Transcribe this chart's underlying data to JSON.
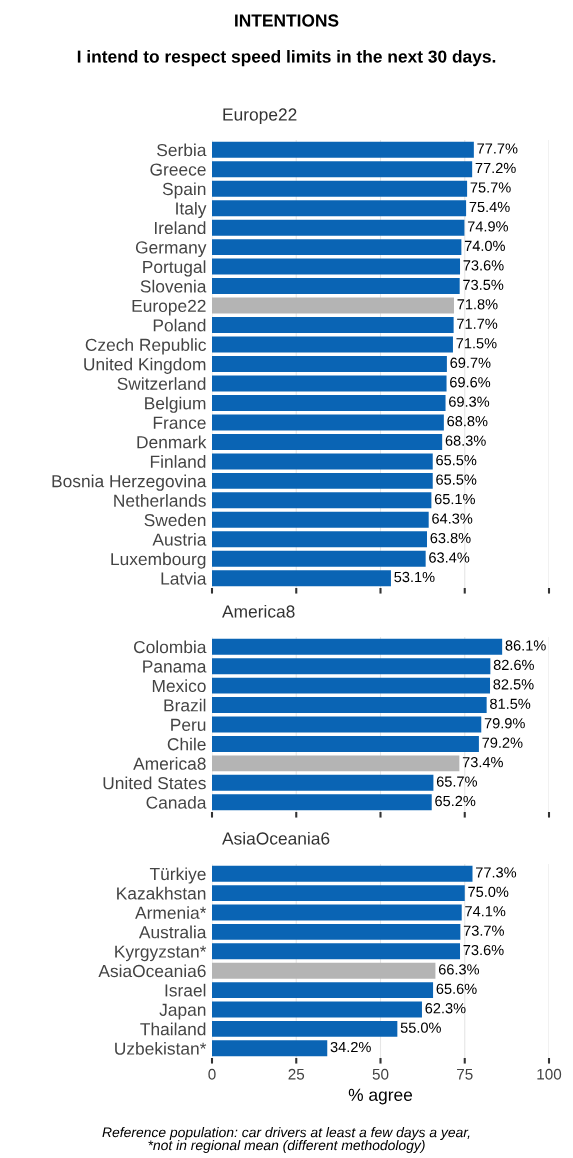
{
  "chart_data": [
    {
      "type": "bar",
      "orientation": "horizontal",
      "title": "INTENTIONS",
      "subtitle": "I intend to respect speed limits in the next 30 days.",
      "annotations": [
        "Europe22"
      ],
      "categories": [
        "Serbia",
        "Greece",
        "Spain",
        "Italy",
        "Ireland",
        "Germany",
        "Portugal",
        "Slovenia",
        "Europe22",
        "Poland",
        "Czech Republic",
        "United Kingdom",
        "Switzerland",
        "Belgium",
        "France",
        "Denmark",
        "Finland",
        "Bosnia Herzegovina",
        "Netherlands",
        "Sweden",
        "Austria",
        "Luxembourg",
        "Latvia"
      ],
      "values": [
        77.7,
        77.2,
        75.7,
        75.4,
        74.9,
        74.0,
        73.6,
        73.5,
        71.8,
        71.7,
        71.5,
        69.7,
        69.6,
        69.3,
        68.8,
        68.3,
        65.5,
        65.5,
        65.1,
        64.3,
        63.8,
        63.4,
        53.1
      ],
      "value_labels": [
        "77.7%",
        "77.2%",
        "75.7%",
        "75.4%",
        "74.9%",
        "74.0%",
        "73.6%",
        "73.5%",
        "71.8%",
        "71.7%",
        "71.5%",
        "69.7%",
        "69.6%",
        "69.3%",
        "68.8%",
        "68.3%",
        "65.5%",
        "65.5%",
        "65.1%",
        "64.3%",
        "63.8%",
        "63.4%",
        "53.1%"
      ],
      "colors": [
        "#0a64b4",
        "#0a64b4",
        "#0a64b4",
        "#0a64b4",
        "#0a64b4",
        "#0a64b4",
        "#0a64b4",
        "#0a64b4",
        "#b4b4b4",
        "#0a64b4",
        "#0a64b4",
        "#0a64b4",
        "#0a64b4",
        "#0a64b4",
        "#0a64b4",
        "#0a64b4",
        "#0a64b4",
        "#0a64b4",
        "#0a64b4",
        "#0a64b4",
        "#0a64b4",
        "#0a64b4",
        "#0a64b4"
      ],
      "xlim": [
        0,
        100
      ],
      "xticks": [
        0,
        25,
        50,
        75,
        100
      ],
      "grid": "x",
      "tick_labels": "y"
    },
    {
      "type": "bar",
      "orientation": "horizontal",
      "annotations": [
        "America8"
      ],
      "categories": [
        "Colombia",
        "Panama",
        "Mexico",
        "Brazil",
        "Peru",
        "Chile",
        "America8",
        "United States",
        "Canada"
      ],
      "values": [
        86.1,
        82.6,
        82.5,
        81.5,
        79.9,
        79.2,
        73.4,
        65.7,
        65.2
      ],
      "value_labels": [
        "86.1%",
        "82.6%",
        "82.5%",
        "81.5%",
        "79.9%",
        "79.2%",
        "73.4%",
        "65.7%",
        "65.2%"
      ],
      "colors": [
        "#0a64b4",
        "#0a64b4",
        "#0a64b4",
        "#0a64b4",
        "#0a64b4",
        "#0a64b4",
        "#b4b4b4",
        "#0a64b4",
        "#0a64b4"
      ],
      "xlim": [
        0,
        100
      ],
      "xticks": [
        0,
        25,
        50,
        75,
        100
      ],
      "grid": "x",
      "tick_labels": "y"
    },
    {
      "type": "bar",
      "orientation": "horizontal",
      "annotations": [
        "AsiaOceania6",
        "Reference population: car drivers at least a few days a year,\n*not in regional mean (different methodology)"
      ],
      "xlabel": "% agree",
      "categories": [
        "Türkiye",
        "Kazakhstan",
        "Armenia*",
        "Australia",
        "Kyrgyzstan*",
        "AsiaOceania6",
        "Israel",
        "Japan",
        "Thailand",
        "Uzbekistan*"
      ],
      "values": [
        77.3,
        75.0,
        74.1,
        73.7,
        73.6,
        66.3,
        65.6,
        62.3,
        55.0,
        34.2
      ],
      "value_labels": [
        "77.3%",
        "75.0%",
        "74.1%",
        "73.7%",
        "73.6%",
        "66.3%",
        "65.6%",
        "62.3%",
        "55.0%",
        "34.2%"
      ],
      "colors": [
        "#0a64b4",
        "#0a64b4",
        "#0a64b4",
        "#0a64b4",
        "#0a64b4",
        "#b4b4b4",
        "#0a64b4",
        "#0a64b4",
        "#0a64b4",
        "#0a64b4"
      ],
      "xlim": [
        0,
        100
      ],
      "xticks": [
        0,
        25,
        50,
        75,
        100
      ],
      "grid": "x"
    }
  ]
}
